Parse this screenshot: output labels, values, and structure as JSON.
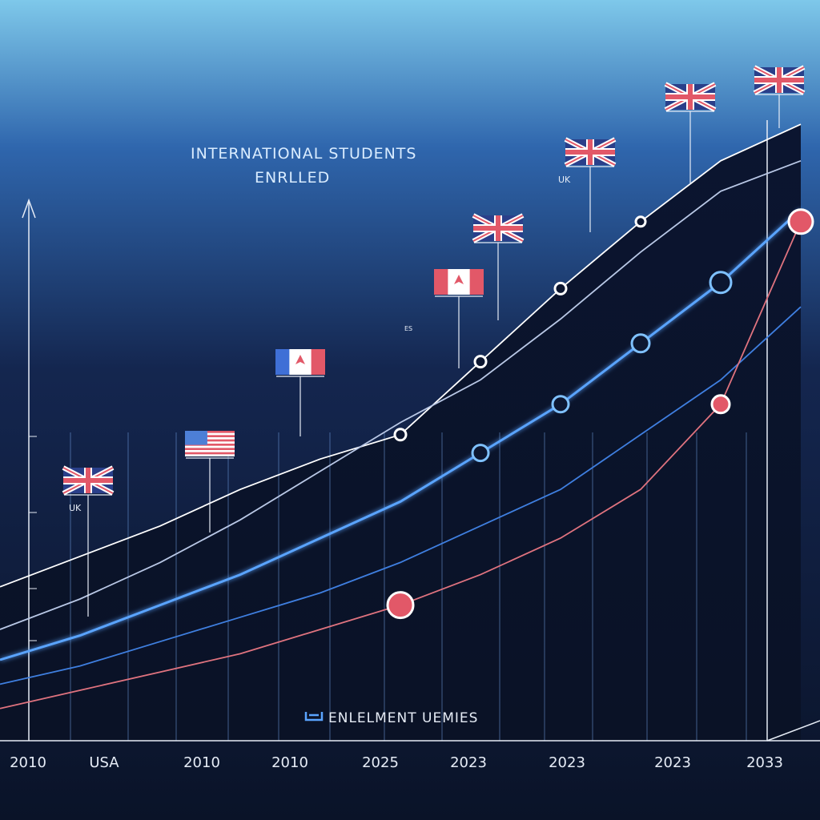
{
  "chart_data": {
    "type": "line",
    "title_line1": "INTERNATIONAL STUDENTS",
    "title_line2": "ENRLLED",
    "legend_label": "ENLELMENT UEMIES",
    "x_tick_labels": [
      "2010",
      "USA",
      "2010",
      "2010",
      "2025",
      "2023",
      "2023",
      "2023",
      "2033"
    ],
    "small_labels": [
      "UK",
      "UK",
      "ES"
    ],
    "x": [
      0,
      1,
      2,
      3,
      4,
      5,
      6,
      7,
      8,
      9,
      10
    ],
    "ylim": [
      0,
      100
    ],
    "grid": true,
    "series": [
      {
        "color": "#ffffff",
        "values": [
          22,
          27,
          32,
          38,
          43,
          47,
          59,
          71,
          82,
          92,
          98
        ]
      },
      {
        "color": "#b9c8e6",
        "values": [
          15,
          20,
          26,
          33,
          41,
          49,
          56,
          66,
          77,
          87,
          92
        ]
      },
      {
        "color": "#5aa4ff",
        "values": [
          10,
          14,
          19,
          24,
          30,
          36,
          44,
          52,
          62,
          72,
          84
        ]
      },
      {
        "color": "#3f7fe0",
        "values": [
          6,
          9,
          13,
          17,
          21,
          26,
          32,
          38,
          47,
          56,
          68
        ]
      },
      {
        "color": "#e0737f",
        "values": [
          2,
          5,
          8,
          11,
          15,
          19,
          24,
          30,
          38,
          52,
          82
        ]
      }
    ]
  },
  "colors": {
    "background_top": "#7ec8ea",
    "background_mid": "#2c5aa0",
    "background_bottom": "#0c1630",
    "accent_red": "#e25868",
    "accent_blue": "#7fc1ff"
  },
  "flags": [
    {
      "icon": "uk-flag-icon"
    },
    {
      "icon": "usa-flag-icon"
    },
    {
      "icon": "canada-flag-icon"
    },
    {
      "icon": "canada-flag-icon"
    },
    {
      "icon": "uk-flag-icon"
    },
    {
      "icon": "uk-flag-icon"
    },
    {
      "icon": "uk-flag-icon"
    },
    {
      "icon": "uk-flag-icon"
    }
  ]
}
